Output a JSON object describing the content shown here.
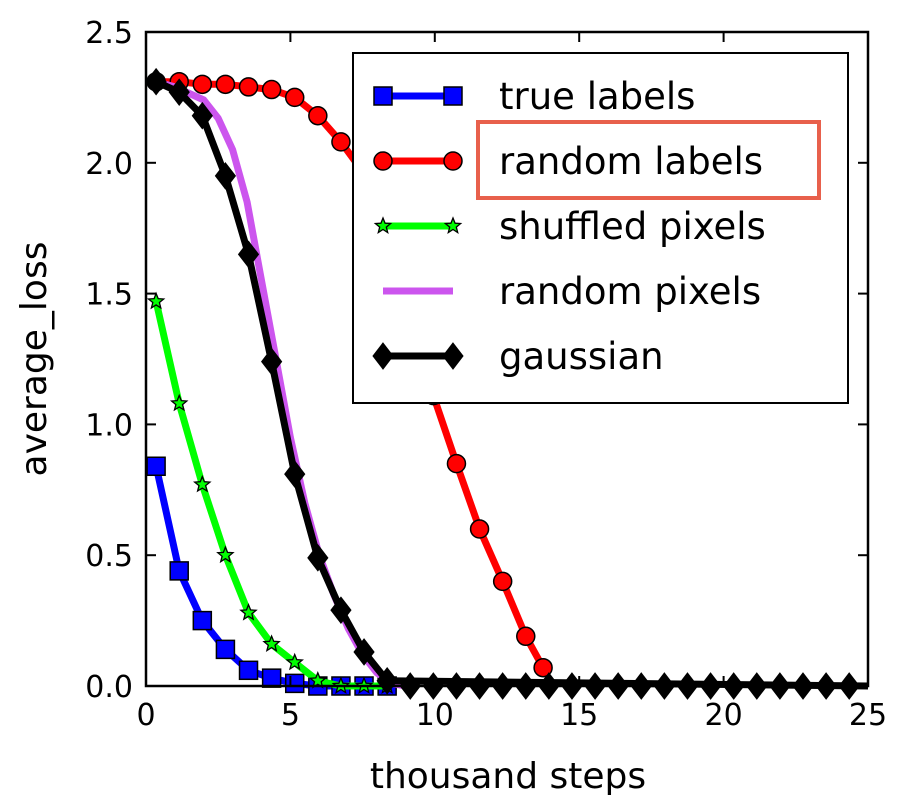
{
  "chart_data": {
    "type": "line",
    "xlabel": "thousand steps",
    "ylabel": "average_loss",
    "xlim": [
      0,
      25
    ],
    "ylim": [
      0,
      2.5
    ],
    "xticks": [
      "0",
      "5",
      "10",
      "15",
      "20",
      "25"
    ],
    "yticks": [
      "0.0",
      "0.5",
      "1.0",
      "1.5",
      "2.0",
      "2.5"
    ],
    "legend_position": "top-right",
    "highlighted_legend_entry": "random labels",
    "highlight_color": "#e8604c",
    "series": [
      {
        "name": "true labels",
        "color": "#0000ff",
        "marker": "square",
        "x": [
          0.35,
          1.15,
          1.95,
          2.75,
          3.55,
          4.35,
          5.15,
          5.95,
          6.75,
          7.55,
          8.35
        ],
        "y": [
          0.84,
          0.44,
          0.25,
          0.14,
          0.06,
          0.03,
          0.01,
          0.0,
          0.0,
          0.0,
          0.0
        ]
      },
      {
        "name": "random labels",
        "color": "#ff0000",
        "marker": "circle",
        "x": [
          0.35,
          1.15,
          1.95,
          2.75,
          3.55,
          4.35,
          5.15,
          5.95,
          6.75,
          7.55,
          8.35,
          9.15,
          9.95,
          10.75,
          11.55,
          12.35,
          13.15,
          13.75
        ],
        "y": [
          2.31,
          2.31,
          2.3,
          2.3,
          2.29,
          2.28,
          2.25,
          2.18,
          2.08,
          1.96,
          1.79,
          1.52,
          1.11,
          0.85,
          0.6,
          0.4,
          0.19,
          0.07
        ]
      },
      {
        "name": "shuffled pixels",
        "color": "#00ff00",
        "marker": "star",
        "x": [
          0.35,
          1.15,
          1.95,
          2.75,
          3.55,
          4.35,
          5.15,
          5.95,
          6.75,
          7.55,
          8.35
        ],
        "y": [
          1.47,
          1.08,
          0.77,
          0.5,
          0.28,
          0.16,
          0.09,
          0.02,
          0.0,
          0.0,
          0.0
        ]
      },
      {
        "name": "random pixels",
        "color": "#cc55ee",
        "marker": "none",
        "x": [
          0.35,
          1.0,
          2.0,
          2.5,
          3.0,
          3.5,
          4.0,
          4.5,
          5.0,
          5.5,
          6.0,
          6.5,
          7.0,
          7.5,
          8.0,
          8.5,
          9.0
        ],
        "y": [
          2.31,
          2.29,
          2.24,
          2.17,
          2.05,
          1.85,
          1.55,
          1.25,
          0.95,
          0.7,
          0.5,
          0.35,
          0.22,
          0.12,
          0.05,
          0.01,
          0.0
        ]
      },
      {
        "name": "gaussian",
        "color": "#000000",
        "marker": "diamond",
        "x": [
          0.35,
          1.15,
          1.95,
          2.75,
          3.55,
          4.35,
          5.15,
          5.95,
          6.75,
          7.55,
          8.35
        ],
        "y": [
          2.31,
          2.27,
          2.18,
          1.95,
          1.65,
          1.24,
          0.81,
          0.49,
          0.29,
          0.13,
          0.02
        ]
      }
    ],
    "flat_tail_markers": {
      "x_start": 9.15,
      "x_end": 25.0,
      "step": 0.8,
      "y": 0.0,
      "marker": "diamond",
      "color": "#000000"
    }
  }
}
